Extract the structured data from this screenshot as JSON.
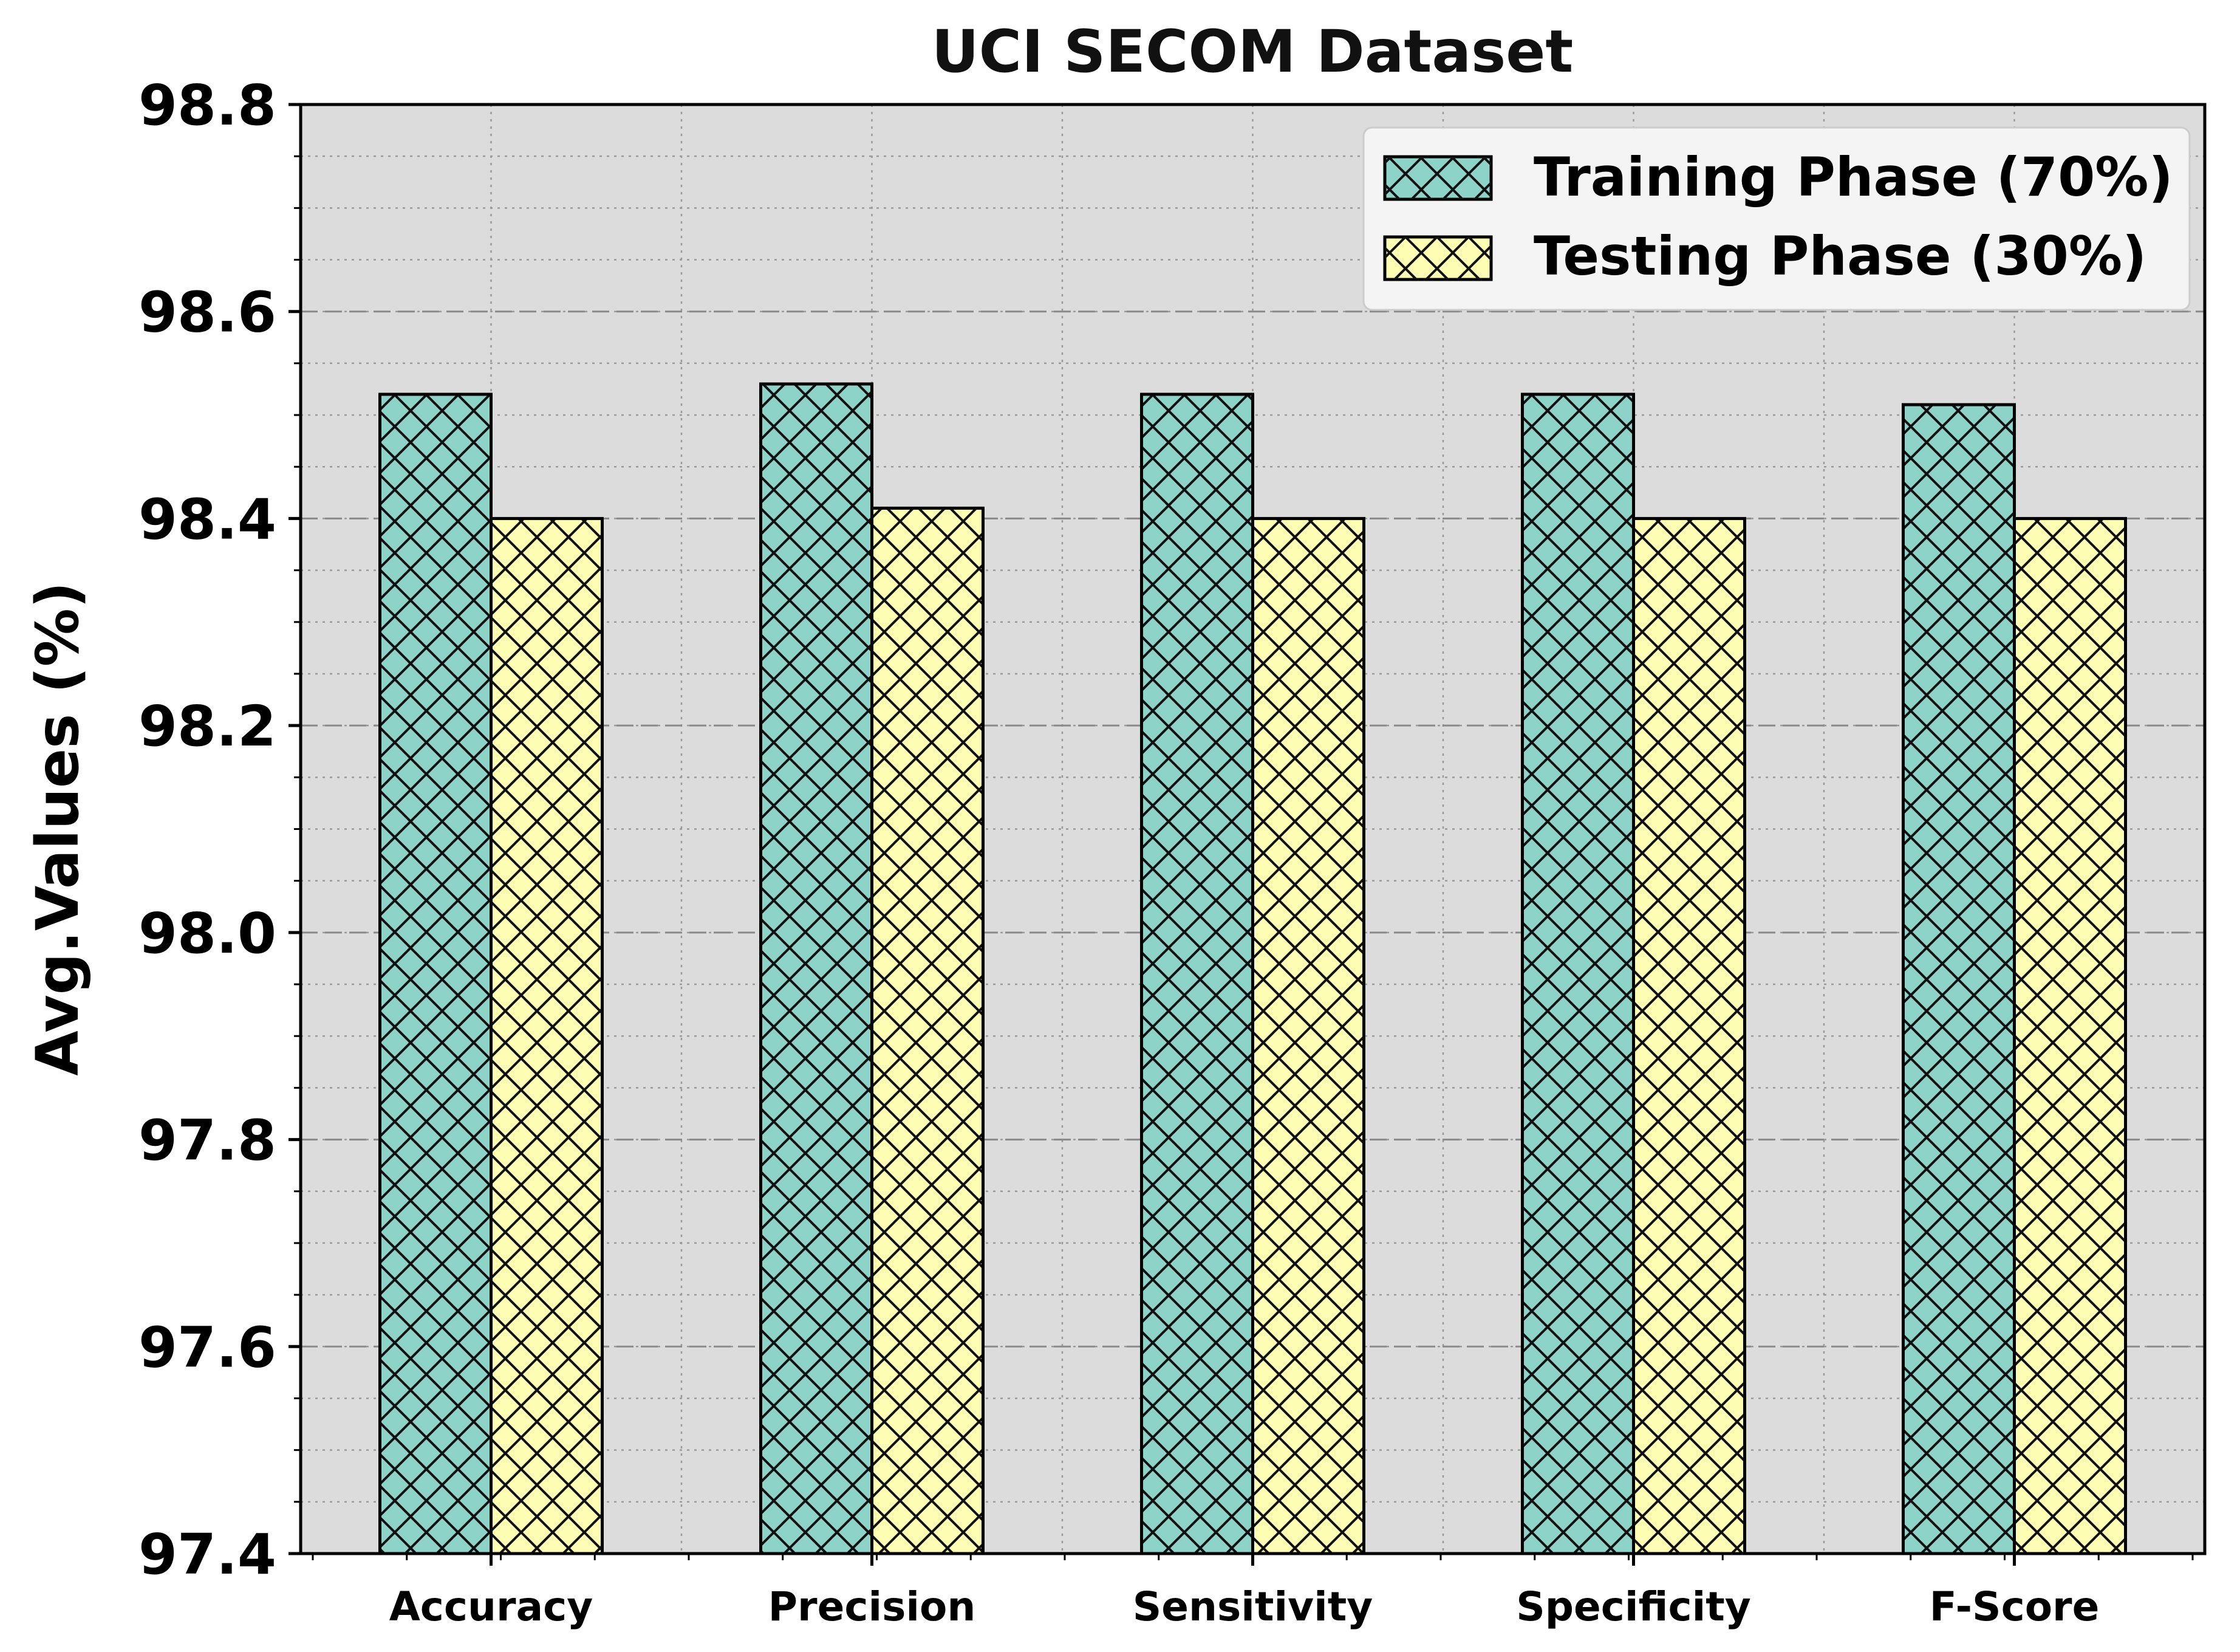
{
  "chart_data": {
    "type": "bar",
    "title": "UCI SECOM Dataset",
    "xlabel": "",
    "ylabel": "Avg.Values (%)",
    "ylim": [
      97.4,
      98.8
    ],
    "yticks": [
      "97.4",
      "97.6",
      "97.8",
      "98.0",
      "98.2",
      "98.4",
      "98.6",
      "98.8"
    ],
    "grid": true,
    "legend_position": "top-right",
    "categories": [
      "Accuracy",
      "Precision",
      "Sensitivity",
      "Specificity",
      "F-Score"
    ],
    "series": [
      {
        "name": "Training Phase (70%)",
        "color": "#8ed3c7",
        "values": [
          98.52,
          98.53,
          98.52,
          98.52,
          98.51
        ]
      },
      {
        "name": "Testing Phase (30%)",
        "color": "#fdfdb3",
        "values": [
          98.4,
          98.41,
          98.4,
          98.4,
          98.4
        ]
      }
    ]
  }
}
